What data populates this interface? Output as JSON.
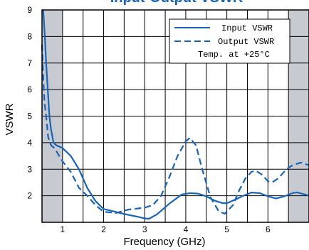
{
  "chart_data": {
    "type": "line",
    "title": "Input-Output VSWR",
    "xlabel": "Frequency (GHz)",
    "ylabel": "VSWR",
    "xlim": [
      0.5,
      7.0
    ],
    "ylim": [
      1,
      9
    ],
    "x_ticks": [
      1,
      2,
      3,
      4,
      5,
      6
    ],
    "y_ticks": [
      2,
      3,
      4,
      5,
      6,
      7,
      8,
      9
    ],
    "x_grid": [
      1.0,
      1.5,
      2.0,
      2.5,
      3.0,
      3.5,
      4.0,
      4.5,
      5.0,
      5.5,
      6.0,
      6.5
    ],
    "y_grid": [
      2,
      3,
      4,
      5,
      6,
      7,
      8
    ],
    "shaded_regions": [
      [
        0.5,
        1.0
      ],
      [
        6.5,
        7.0
      ]
    ],
    "grid": true,
    "legend_position": "top-right",
    "annotation": "Temp. at +25°C",
    "series": [
      {
        "name": "Input VSWR",
        "style": "solid",
        "color": "#1a64b4",
        "points": [
          [
            0.53,
            9.0
          ],
          [
            0.57,
            8.0
          ],
          [
            0.6,
            7.0
          ],
          [
            0.64,
            6.0
          ],
          [
            0.68,
            5.0
          ],
          [
            0.72,
            4.5
          ],
          [
            0.78,
            4.0
          ],
          [
            0.85,
            3.9
          ],
          [
            1.0,
            3.8
          ],
          [
            1.2,
            3.5
          ],
          [
            1.4,
            3.0
          ],
          [
            1.6,
            2.3
          ],
          [
            1.8,
            1.8
          ],
          [
            2.0,
            1.5
          ],
          [
            2.2,
            1.43
          ],
          [
            2.4,
            1.35
          ],
          [
            2.6,
            1.28
          ],
          [
            2.8,
            1.22
          ],
          [
            3.0,
            1.15
          ],
          [
            3.1,
            1.13
          ],
          [
            3.3,
            1.3
          ],
          [
            3.6,
            1.7
          ],
          [
            3.9,
            2.05
          ],
          [
            4.1,
            2.1
          ],
          [
            4.3,
            2.08
          ],
          [
            4.5,
            1.98
          ],
          [
            4.7,
            1.82
          ],
          [
            4.9,
            1.72
          ],
          [
            5.0,
            1.72
          ],
          [
            5.2,
            1.85
          ],
          [
            5.4,
            2.0
          ],
          [
            5.6,
            2.12
          ],
          [
            5.8,
            2.1
          ],
          [
            6.0,
            1.98
          ],
          [
            6.2,
            1.9
          ],
          [
            6.4,
            1.98
          ],
          [
            6.6,
            2.1
          ],
          [
            6.7,
            2.13
          ],
          [
            6.9,
            2.05
          ],
          [
            7.0,
            2.0
          ]
        ]
      },
      {
        "name": "Output VSWR",
        "style": "dashed",
        "color": "#1a64b4",
        "points": [
          [
            0.5,
            7.7
          ],
          [
            0.53,
            6.5
          ],
          [
            0.56,
            5.5
          ],
          [
            0.6,
            5.0
          ],
          [
            0.65,
            4.2
          ],
          [
            0.72,
            3.9
          ],
          [
            0.8,
            3.8
          ],
          [
            1.0,
            3.3
          ],
          [
            1.2,
            2.9
          ],
          [
            1.4,
            2.3
          ],
          [
            1.6,
            2.0
          ],
          [
            1.8,
            1.65
          ],
          [
            2.0,
            1.4
          ],
          [
            2.3,
            1.35
          ],
          [
            2.6,
            1.48
          ],
          [
            3.0,
            1.55
          ],
          [
            3.2,
            1.65
          ],
          [
            3.4,
            2.0
          ],
          [
            3.6,
            2.7
          ],
          [
            3.8,
            3.5
          ],
          [
            4.0,
            4.05
          ],
          [
            4.1,
            4.18
          ],
          [
            4.25,
            3.9
          ],
          [
            4.4,
            3.0
          ],
          [
            4.6,
            1.95
          ],
          [
            4.8,
            1.42
          ],
          [
            4.95,
            1.32
          ],
          [
            5.15,
            1.65
          ],
          [
            5.3,
            2.2
          ],
          [
            5.45,
            2.65
          ],
          [
            5.6,
            2.9
          ],
          [
            5.7,
            2.95
          ],
          [
            5.85,
            2.8
          ],
          [
            6.0,
            2.55
          ],
          [
            6.1,
            2.5
          ],
          [
            6.25,
            2.65
          ],
          [
            6.45,
            3.0
          ],
          [
            6.6,
            3.15
          ],
          [
            6.8,
            3.25
          ],
          [
            7.0,
            3.15
          ]
        ]
      }
    ]
  }
}
